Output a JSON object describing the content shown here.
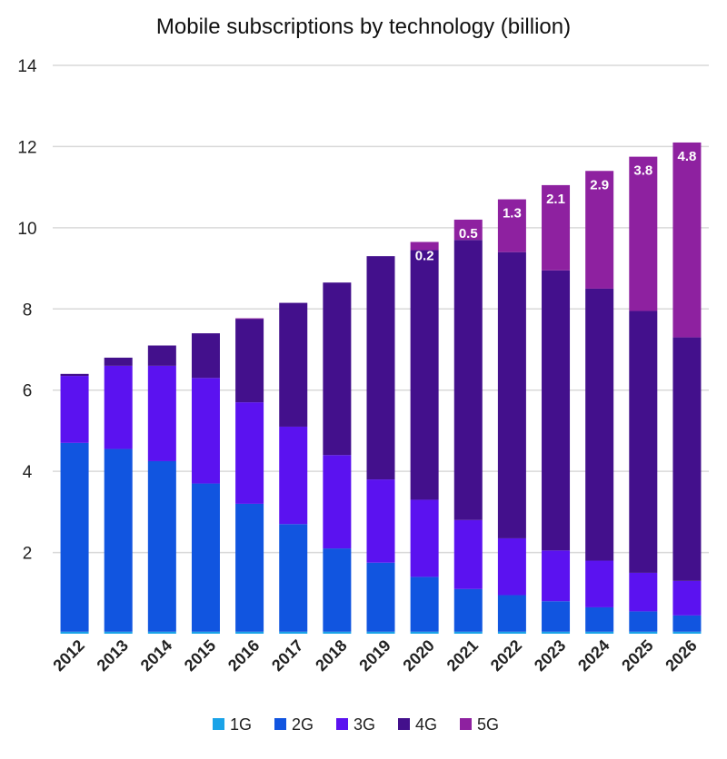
{
  "chart_data": {
    "type": "bar",
    "stacked": true,
    "title": "Mobile subscriptions by technology (billion)",
    "xlabel": "",
    "ylabel": "",
    "ylim": [
      0,
      14
    ],
    "yticks": [
      2,
      4,
      6,
      8,
      10,
      12,
      14
    ],
    "grid": true,
    "legend_position": "bottom",
    "categories": [
      "2012",
      "2013",
      "2014",
      "2015",
      "2016",
      "2017",
      "2018",
      "2019",
      "2020",
      "2021",
      "2022",
      "2023",
      "2024",
      "2025",
      "2026"
    ],
    "series": [
      {
        "name": "1G",
        "color": "#1aa3e8",
        "values": [
          0.05,
          0.05,
          0.05,
          0.05,
          0.05,
          0.05,
          0.05,
          0.05,
          0.05,
          0.05,
          0.05,
          0.05,
          0.05,
          0.05,
          0.05
        ]
      },
      {
        "name": "2G",
        "color": "#1155e0",
        "values": [
          4.65,
          4.5,
          4.2,
          3.65,
          3.15,
          2.65,
          2.05,
          1.7,
          1.35,
          1.05,
          0.9,
          0.75,
          0.6,
          0.5,
          0.4
        ]
      },
      {
        "name": "3G",
        "color": "#5b12f0",
        "values": [
          1.65,
          2.05,
          2.35,
          2.6,
          2.5,
          2.4,
          2.3,
          2.05,
          1.9,
          1.7,
          1.4,
          1.25,
          1.15,
          0.95,
          0.85
        ]
      },
      {
        "name": "4G",
        "color": "#43108c",
        "values": [
          0.05,
          0.2,
          0.5,
          1.1,
          2.05,
          3.05,
          4.25,
          5.5,
          6.15,
          6.9,
          7.05,
          6.9,
          6.7,
          6.45,
          6.0
        ]
      },
      {
        "name": "5G",
        "color": "#8e21a0",
        "values": [
          0,
          0,
          0,
          0,
          0.02,
          0,
          0,
          0,
          0.2,
          0.5,
          1.3,
          2.1,
          2.9,
          3.8,
          4.8
        ],
        "labels": [
          "",
          "",
          "",
          "",
          "",
          "",
          "",
          "",
          "0.2",
          "0.5",
          "1.3",
          "2.1",
          "2.9",
          "3.8",
          "4.8"
        ]
      }
    ]
  }
}
